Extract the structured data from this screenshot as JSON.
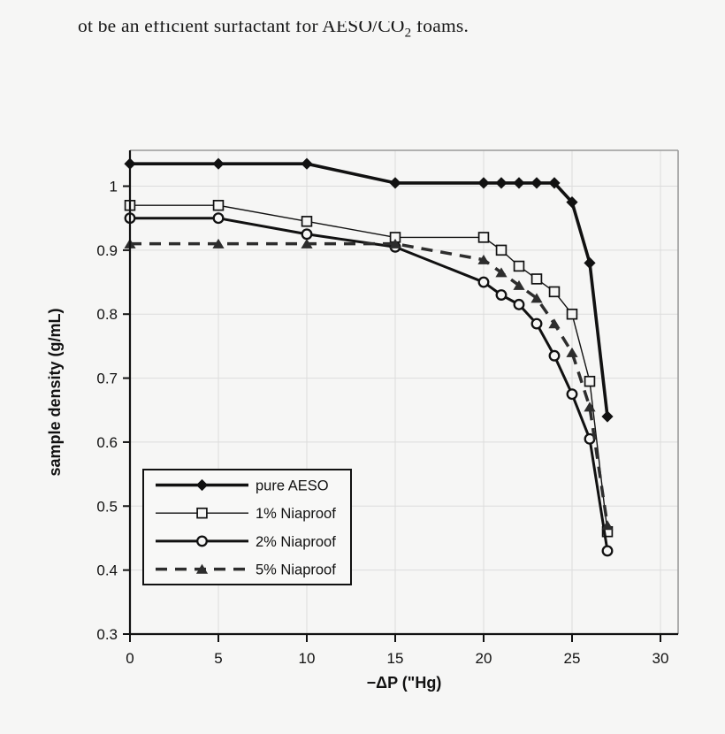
{
  "page": {
    "top_text": {
      "before_sub": "ot be an efficient surfactant for AESO/CO",
      "sub": "2",
      "after_sub": " foams."
    }
  },
  "chart_data": {
    "type": "line",
    "title": "",
    "xlabel": "−ΔP (\"Hg)",
    "ylabel": "sample density (g/mL)",
    "xlim": [
      0,
      31
    ],
    "ylim": [
      0.3,
      1.056
    ],
    "x_ticks": [
      0,
      5,
      10,
      15,
      20,
      25,
      30
    ],
    "y_ticks": [
      0.3,
      0.4,
      0.5,
      0.6,
      0.7,
      0.8,
      0.9,
      1
    ],
    "y_tick_labels": [
      "0.3",
      "0.4",
      "0.5",
      "0.6",
      "0.7",
      "0.8",
      "0.9",
      "1"
    ],
    "grid": true,
    "legend_position": "lower-left",
    "x": [
      0,
      5,
      10,
      15,
      20,
      21,
      22,
      23,
      24,
      25,
      26,
      27
    ],
    "series": [
      {
        "name": "pure AESO",
        "marker": "diamond-filled",
        "line": "solid-thick",
        "values": [
          1.035,
          1.035,
          1.035,
          1.005,
          1.005,
          1.005,
          1.005,
          1.005,
          1.005,
          0.975,
          0.88,
          0.64
        ]
      },
      {
        "name": "1% Niaproof",
        "marker": "square-open",
        "line": "solid-thin",
        "values": [
          0.97,
          0.97,
          0.945,
          0.92,
          0.92,
          0.9,
          0.875,
          0.855,
          0.835,
          0.8,
          0.695,
          0.46
        ]
      },
      {
        "name": "2% Niaproof",
        "marker": "circle-open",
        "line": "solid-medium",
        "values": [
          0.95,
          0.95,
          0.925,
          0.905,
          0.85,
          0.83,
          0.815,
          0.785,
          0.735,
          0.675,
          0.605,
          0.43
        ]
      },
      {
        "name": "5% Niaproof",
        "marker": "triangle-filled",
        "line": "dashed-thick",
        "values": [
          0.91,
          0.91,
          0.91,
          0.91,
          0.885,
          0.865,
          0.845,
          0.825,
          0.785,
          0.74,
          0.655,
          0.47
        ]
      }
    ],
    "colors": {
      "series": "#111111",
      "dashed_series": "#2d2d2d",
      "grid": "#dcdcdc",
      "frame": "#9a9a9a",
      "marker_fill_open": "#f6f6f5",
      "legend_fill": "#f8f8f7"
    }
  }
}
